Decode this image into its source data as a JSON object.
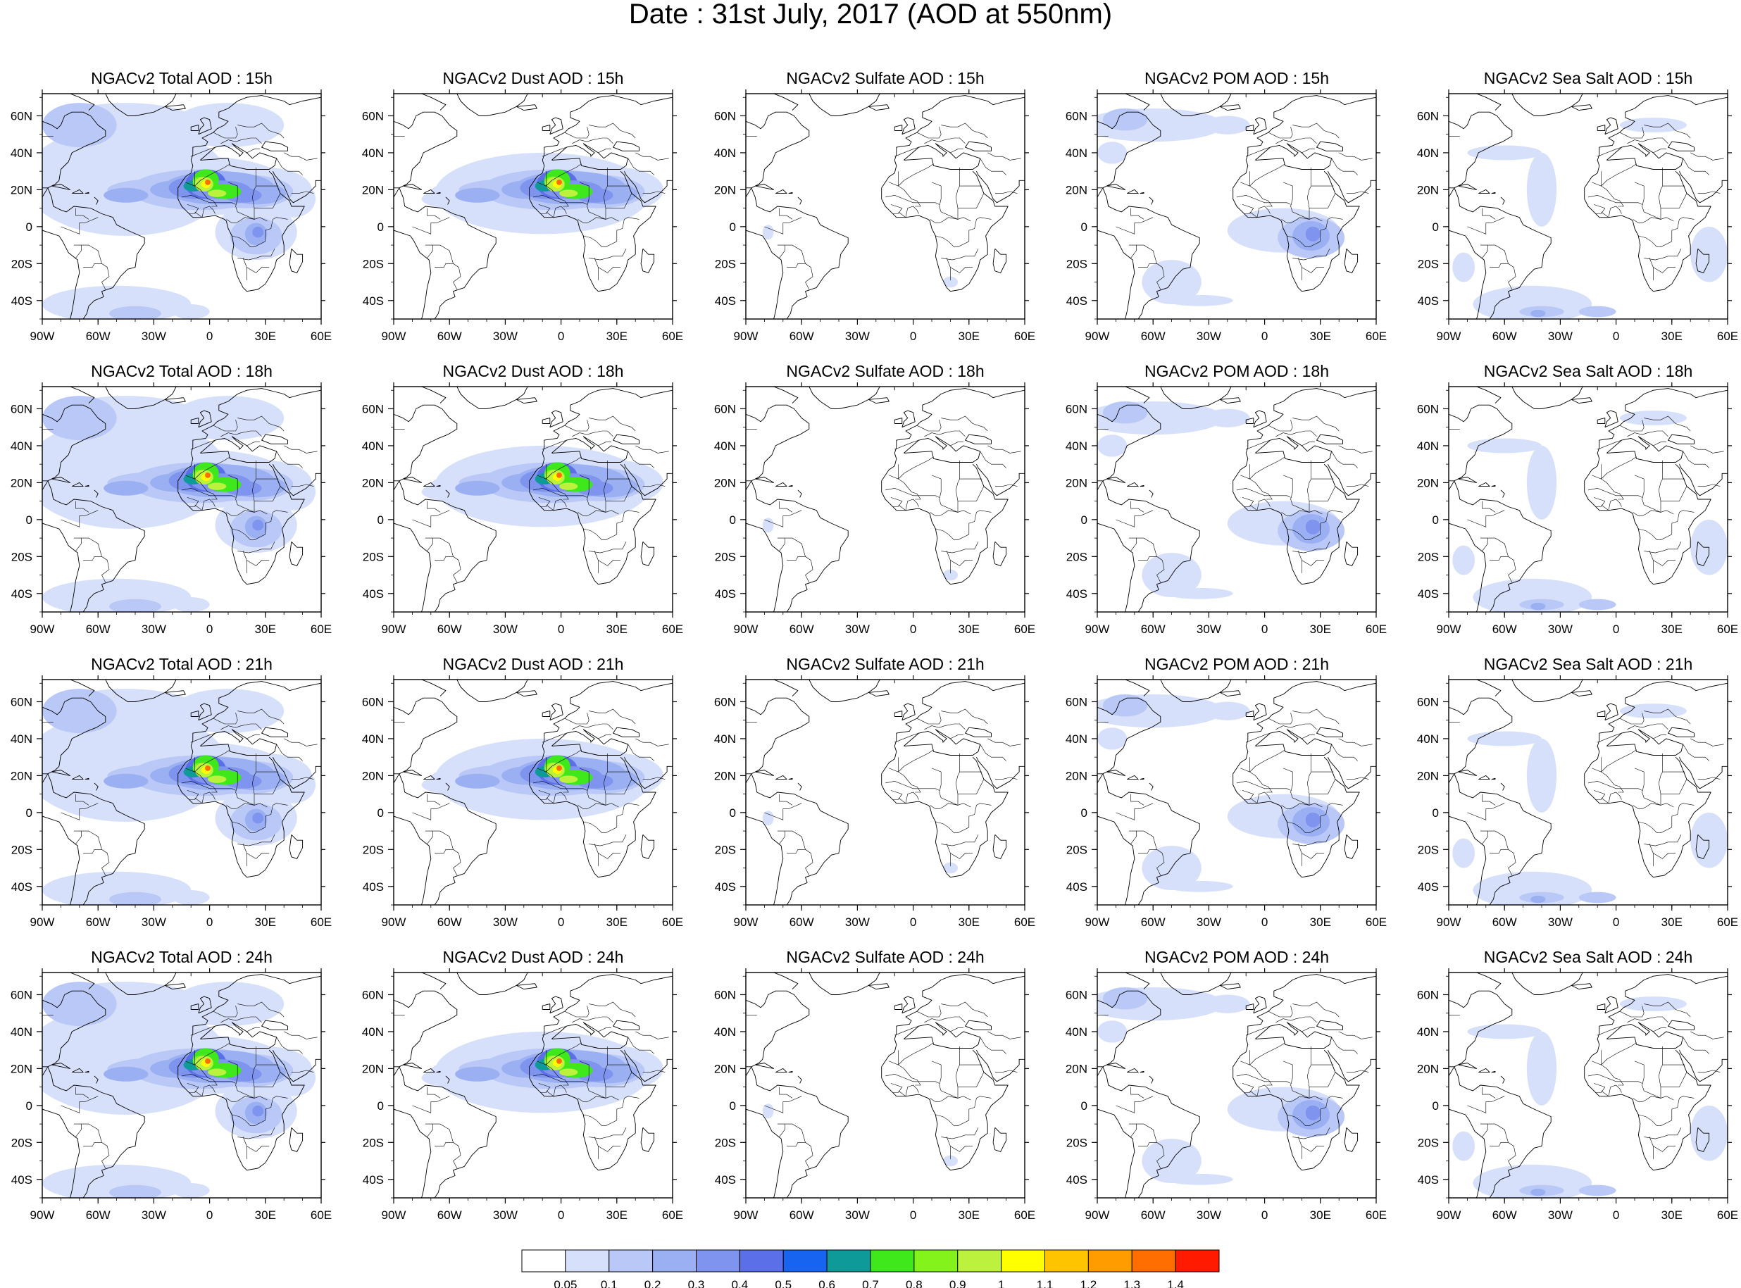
{
  "title": "Date : 31st July, 2017 (AOD at 550nm)",
  "lon_ticks": [
    "90W",
    "60W",
    "30W",
    "0",
    "30E",
    "60E"
  ],
  "lat_ticks": [
    "60N",
    "40N",
    "20N",
    "0",
    "20S",
    "40S"
  ],
  "panels": [
    {
      "title": "NGACv2 Total AOD : 15h",
      "field": "total"
    },
    {
      "title": "NGACv2 Dust AOD : 15h",
      "field": "dust"
    },
    {
      "title": "NGACv2 Sulfate AOD : 15h",
      "field": "sulfate"
    },
    {
      "title": "NGACv2 POM AOD : 15h",
      "field": "pom"
    },
    {
      "title": "NGACv2 Sea Salt AOD : 15h",
      "field": "seasalt"
    },
    {
      "title": "NGACv2 Total AOD : 18h",
      "field": "total"
    },
    {
      "title": "NGACv2 Dust AOD : 18h",
      "field": "dust"
    },
    {
      "title": "NGACv2 Sulfate AOD : 18h",
      "field": "sulfate"
    },
    {
      "title": "NGACv2 POM AOD : 18h",
      "field": "pom"
    },
    {
      "title": "NGACv2 Sea Salt AOD : 18h",
      "field": "seasalt"
    },
    {
      "title": "NGACv2 Total AOD : 21h",
      "field": "total"
    },
    {
      "title": "NGACv2 Dust AOD : 21h",
      "field": "dust"
    },
    {
      "title": "NGACv2 Sulfate AOD : 21h",
      "field": "sulfate"
    },
    {
      "title": "NGACv2 POM AOD : 21h",
      "field": "pom"
    },
    {
      "title": "NGACv2 Sea Salt AOD : 21h",
      "field": "seasalt"
    },
    {
      "title": "NGACv2 Total AOD : 24h",
      "field": "total"
    },
    {
      "title": "NGACv2 Dust AOD : 24h",
      "field": "dust"
    },
    {
      "title": "NGACv2 Sulfate AOD : 24h",
      "field": "sulfate"
    },
    {
      "title": "NGACv2 POM AOD : 24h",
      "field": "pom"
    },
    {
      "title": "NGACv2 Sea Salt  AOD : 24h",
      "field": "seasalt"
    }
  ],
  "colorbar": {
    "labels": [
      "0.05",
      "0.1",
      "0.2",
      "0.3",
      "0.4",
      "0.5",
      "0.6",
      "0.7",
      "0.8",
      "0.9",
      "1",
      "1.1",
      "1.2",
      "1.3",
      "1.4"
    ],
    "colors": [
      "#ffffff",
      "#d7e0fa",
      "#b9c8f6",
      "#9bb0f2",
      "#7e94ee",
      "#5a6fe8",
      "#1764f0",
      "#0f9a9a",
      "#3fe81b",
      "#84f21b",
      "#bcf23d",
      "#ffff00",
      "#ffc400",
      "#ff9d00",
      "#ff6e00",
      "#ff1a00"
    ]
  }
}
